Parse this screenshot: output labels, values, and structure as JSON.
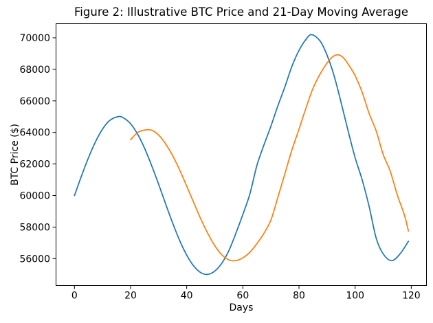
{
  "figure": {
    "background": "#ffffff"
  },
  "chart_data": {
    "type": "line",
    "title": "Figure 2: Illustrative BTC Price and 21-Day Moving Average",
    "xlabel": "Days",
    "ylabel": "BTC Price ($)",
    "xlim": [
      -6.45,
      125.3
    ],
    "ylim": [
      54315,
      70871
    ],
    "xticks": [
      0,
      20,
      40,
      60,
      80,
      100,
      120
    ],
    "yticks": [
      56000,
      58000,
      60000,
      62000,
      64000,
      66000,
      68000,
      70000
    ],
    "grid": false,
    "legend": "none",
    "series": [
      {
        "name": "BTC Price",
        "color": "#1f77b4",
        "x": [
          0,
          2.5,
          5,
          7.5,
          10,
          12.5,
          15.5,
          17.5,
          20,
          22.5,
          25,
          27.5,
          30,
          32.5,
          35,
          37.5,
          40,
          42.5,
          45,
          47.5,
          50,
          52.5,
          55,
          57.5,
          60,
          62.5,
          65,
          67.5,
          70,
          72.5,
          75,
          77.5,
          80,
          82.5,
          84.5,
          87.5,
          90,
          92.5,
          95,
          97.5,
          100,
          102.5,
          105,
          107.5,
          110,
          113,
          116,
          119
        ],
        "y": [
          60000,
          61240,
          62400,
          63410,
          64210,
          64750,
          65000,
          64920,
          64550,
          63890,
          62990,
          61900,
          60710,
          59460,
          58250,
          57140,
          56220,
          55530,
          55110,
          55000,
          55210,
          55710,
          56500,
          57600,
          58800,
          60100,
          61900,
          63200,
          64400,
          65700,
          66900,
          68200,
          69200,
          69900,
          70200,
          69800,
          68900,
          67600,
          65900,
          64100,
          62400,
          61000,
          59300,
          57300,
          56300,
          55870,
          56300,
          57100
        ]
      },
      {
        "name": "21-Day Moving Average",
        "color": "#ff7f0e",
        "x": [
          20,
          22.5,
          25,
          27.5,
          30,
          32.5,
          35,
          37.5,
          40,
          42.5,
          45,
          47.5,
          50,
          52.5,
          55,
          57.5,
          60,
          62.5,
          65,
          67.5,
          70,
          72.5,
          75,
          77.5,
          80,
          82.5,
          85,
          87.5,
          90,
          92,
          94,
          96,
          98,
          100,
          102.5,
          105,
          107.5,
          110,
          112.5,
          115,
          117.5,
          119
        ],
        "y": [
          63540,
          63990,
          64150,
          64140,
          63830,
          63270,
          62520,
          61610,
          60590,
          59550,
          58520,
          57600,
          56820,
          56240,
          55920,
          55870,
          56050,
          56400,
          56950,
          57600,
          58450,
          59900,
          61400,
          62900,
          64200,
          65550,
          66800,
          67700,
          68400,
          68800,
          68920,
          68700,
          68200,
          67600,
          66550,
          65200,
          64100,
          62600,
          61550,
          60050,
          58800,
          57750
        ]
      }
    ]
  },
  "axis": {
    "spine_color": "#000000",
    "tick_color": "#000000",
    "tick_label_color": "#000000"
  }
}
